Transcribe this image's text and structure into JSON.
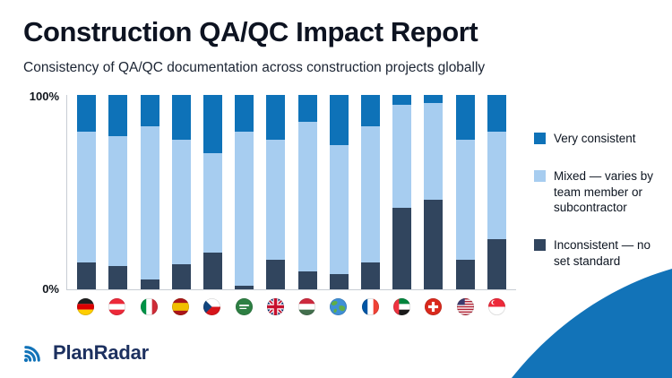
{
  "header": {
    "title": "Construction QA/QC Impact Report",
    "subtitle": "Consistency of QA/QC documentation across construction projects globally"
  },
  "chart_data": {
    "type": "bar",
    "variant": "stacked-100-percent",
    "title": "Consistency of QA/QC documentation across construction projects globally",
    "xlabel": "",
    "ylabel": "",
    "ylim": [
      0,
      100
    ],
    "yticks": [
      "100%",
      "0%"
    ],
    "grid": false,
    "legend_position": "right",
    "categories": [
      "Germany",
      "Austria",
      "Italy",
      "Spain",
      "Czech Republic",
      "Saudi Arabia",
      "United Kingdom",
      "Hungary",
      "Global",
      "France",
      "UAE",
      "Switzerland",
      "USA",
      "Singapore"
    ],
    "category_flags": [
      "germany",
      "austria",
      "italy",
      "spain",
      "czech-republic",
      "saudi-arabia",
      "united-kingdom",
      "hungary",
      "global",
      "france",
      "uae",
      "switzerland",
      "usa",
      "singapore"
    ],
    "series": [
      {
        "name": "Very consistent",
        "color": "#0e72b8",
        "values": [
          19,
          21,
          16,
          23,
          30,
          19,
          23,
          14,
          26,
          16,
          5,
          4,
          23,
          19
        ]
      },
      {
        "name": "Mixed — varies by team member or subcontractor",
        "color": "#a7cdf0",
        "values": [
          67,
          67,
          79,
          64,
          51,
          79,
          62,
          77,
          66,
          70,
          53,
          50,
          62,
          55
        ]
      },
      {
        "name": "Inconsistent — no set standard",
        "color": "#31455e",
        "values": [
          14,
          12,
          5,
          13,
          19,
          2,
          15,
          9,
          8,
          14,
          42,
          46,
          15,
          26
        ]
      }
    ]
  },
  "footer": {
    "brand": "PlanRadar"
  },
  "colors": {
    "accent_blue": "#1273b8",
    "dark_navy_text": "#1d3160"
  }
}
